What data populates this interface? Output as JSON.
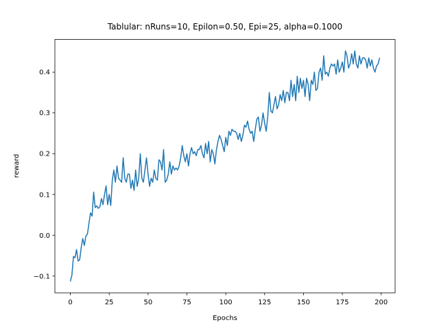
{
  "chart_data": {
    "type": "line",
    "title": "Tablular: nRuns=10, Epilon=0.50, Epi=25, alpha=0.1000",
    "x_label": "Epochs",
    "y_label": "reward",
    "x": [
      0,
      1,
      2,
      3,
      4,
      5,
      6,
      7,
      8,
      9,
      10,
      11,
      12,
      13,
      14,
      15,
      16,
      17,
      18,
      19,
      20,
      21,
      22,
      23,
      24,
      25,
      26,
      27,
      28,
      29,
      30,
      31,
      32,
      33,
      34,
      35,
      36,
      37,
      38,
      39,
      40,
      41,
      42,
      43,
      44,
      45,
      46,
      47,
      48,
      49,
      50,
      51,
      52,
      53,
      54,
      55,
      56,
      57,
      58,
      59,
      60,
      61,
      62,
      63,
      64,
      65,
      66,
      67,
      68,
      69,
      70,
      71,
      72,
      73,
      74,
      75,
      76,
      77,
      78,
      79,
      80,
      81,
      82,
      83,
      84,
      85,
      86,
      87,
      88,
      89,
      90,
      91,
      92,
      93,
      94,
      95,
      96,
      97,
      98,
      99,
      100,
      101,
      102,
      103,
      104,
      105,
      106,
      107,
      108,
      109,
      110,
      111,
      112,
      113,
      114,
      115,
      116,
      117,
      118,
      119,
      120,
      121,
      122,
      123,
      124,
      125,
      126,
      127,
      128,
      129,
      130,
      131,
      132,
      133,
      134,
      135,
      136,
      137,
      138,
      139,
      140,
      141,
      142,
      143,
      144,
      145,
      146,
      147,
      148,
      149,
      150,
      151,
      152,
      153,
      154,
      155,
      156,
      157,
      158,
      159,
      160,
      161,
      162,
      163,
      164,
      165,
      166,
      167,
      168,
      169,
      170,
      171,
      172,
      173,
      174,
      175,
      176,
      177,
      178,
      179,
      180,
      181,
      182,
      183,
      184,
      185,
      186,
      187,
      188,
      189,
      190,
      191,
      192,
      193,
      194,
      195,
      196,
      197,
      198,
      199
    ],
    "series": [
      {
        "color": "#1f77b4",
        "values": [
          -0.113,
          -0.098,
          -0.052,
          -0.055,
          -0.035,
          -0.063,
          -0.06,
          -0.03,
          -0.008,
          -0.025,
          -0.002,
          0.003,
          0.03,
          0.055,
          0.047,
          0.106,
          0.068,
          0.072,
          0.066,
          0.07,
          0.09,
          0.075,
          0.1,
          0.121,
          0.075,
          0.1,
          0.073,
          0.135,
          0.16,
          0.13,
          0.17,
          0.14,
          0.135,
          0.13,
          0.19,
          0.14,
          0.13,
          0.15,
          0.15,
          0.115,
          0.135,
          0.11,
          0.16,
          0.12,
          0.14,
          0.2,
          0.14,
          0.13,
          0.16,
          0.19,
          0.15,
          0.12,
          0.14,
          0.13,
          0.16,
          0.14,
          0.135,
          0.185,
          0.18,
          0.16,
          0.21,
          0.13,
          0.135,
          0.15,
          0.18,
          0.15,
          0.17,
          0.16,
          0.165,
          0.16,
          0.17,
          0.19,
          0.22,
          0.195,
          0.18,
          0.2,
          0.17,
          0.2,
          0.215,
          0.2,
          0.205,
          0.195,
          0.21,
          0.21,
          0.22,
          0.2,
          0.19,
          0.225,
          0.2,
          0.23,
          0.18,
          0.21,
          0.2,
          0.175,
          0.21,
          0.23,
          0.245,
          0.235,
          0.22,
          0.205,
          0.24,
          0.22,
          0.255,
          0.245,
          0.26,
          0.255,
          0.255,
          0.25,
          0.235,
          0.25,
          0.23,
          0.245,
          0.27,
          0.265,
          0.28,
          0.26,
          0.25,
          0.255,
          0.23,
          0.26,
          0.285,
          0.29,
          0.255,
          0.27,
          0.3,
          0.275,
          0.255,
          0.29,
          0.35,
          0.305,
          0.3,
          0.32,
          0.34,
          0.31,
          0.32,
          0.345,
          0.33,
          0.355,
          0.325,
          0.35,
          0.35,
          0.33,
          0.38,
          0.34,
          0.37,
          0.33,
          0.39,
          0.35,
          0.385,
          0.36,
          0.38,
          0.34,
          0.385,
          0.37,
          0.33,
          0.38,
          0.37,
          0.4,
          0.355,
          0.36,
          0.4,
          0.41,
          0.38,
          0.44,
          0.395,
          0.4,
          0.39,
          0.41,
          0.42,
          0.415,
          0.42,
          0.395,
          0.43,
          0.4,
          0.41,
          0.425,
          0.4,
          0.452,
          0.44,
          0.41,
          0.42,
          0.445,
          0.42,
          0.452,
          0.42,
          0.41,
          0.44,
          0.42,
          0.435,
          0.435,
          0.43,
          0.41,
          0.435,
          0.415,
          0.43,
          0.41,
          0.4,
          0.415,
          0.42,
          0.435
        ]
      }
    ],
    "xlim": [
      -9.95,
      208.95
    ],
    "ylim": [
      -0.141,
      0.48
    ],
    "xticks": [
      0,
      25,
      50,
      75,
      100,
      125,
      150,
      175,
      200
    ],
    "yticks": [
      {
        "value": -0.1,
        "label": "−0.1"
      },
      {
        "value": 0,
        "label": "0.0"
      },
      0.1,
      0.2,
      0.3,
      0.4
    ],
    "grid": false
  }
}
